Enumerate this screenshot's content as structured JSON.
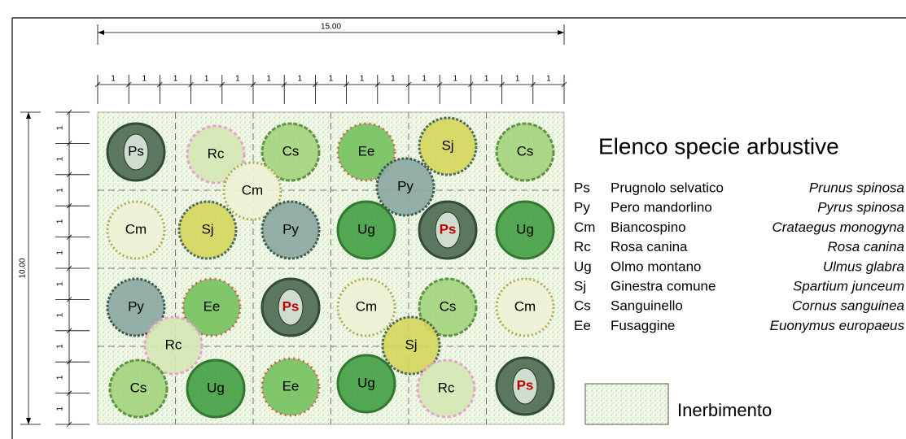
{
  "dimensions": {
    "width": {
      "label": "15.00",
      "units": [
        "1",
        "1",
        "1",
        "1",
        "1",
        "1",
        "1",
        "1",
        "1",
        "1",
        "1",
        "1",
        "1",
        "1",
        "1"
      ]
    },
    "height": {
      "label": "10.00",
      "units": [
        "1",
        "1",
        "1",
        "1",
        "1",
        "1",
        "1",
        "1",
        "1",
        "1"
      ]
    }
  },
  "plants": [
    "Ps",
    "Rc",
    "Cs",
    "Ee",
    "Sj",
    "Cs",
    "Cm",
    "Py",
    "Cm",
    "Sj",
    "Py",
    "Ug",
    "Ps",
    "Ug",
    "Py",
    "Ee",
    "Ps",
    "Cm",
    "Cs",
    "Cm",
    "Rc",
    "Sj",
    "Cs",
    "Ug",
    "Ee",
    "Ug",
    "Rc",
    "Ps"
  ],
  "legend": {
    "title": "Elenco specie arbustive",
    "species": [
      {
        "code": "Ps",
        "common": "Prugnolo selvatico",
        "latin": "Prunus spinosa"
      },
      {
        "code": "Py",
        "common": "Pero mandorlino",
        "latin": "Pyrus spinosa"
      },
      {
        "code": "Cm",
        "common": "Biancospino",
        "latin": "Crataegus monogyna"
      },
      {
        "code": "Rc",
        "common": "Rosa canina",
        "latin": "Rosa canina"
      },
      {
        "code": "Ug",
        "common": "Olmo montano",
        "latin": "Ulmus glabra"
      },
      {
        "code": "Sj",
        "common": "Ginestra comune",
        "latin": "Spartium junceum"
      },
      {
        "code": "Cs",
        "common": "Sanguinello",
        "latin": "Cornus sanguinea"
      },
      {
        "code": "Ee",
        "common": "Fusaggine",
        "latin": "Euonymus europaeus"
      }
    ]
  },
  "grass": "Inerbimento"
}
